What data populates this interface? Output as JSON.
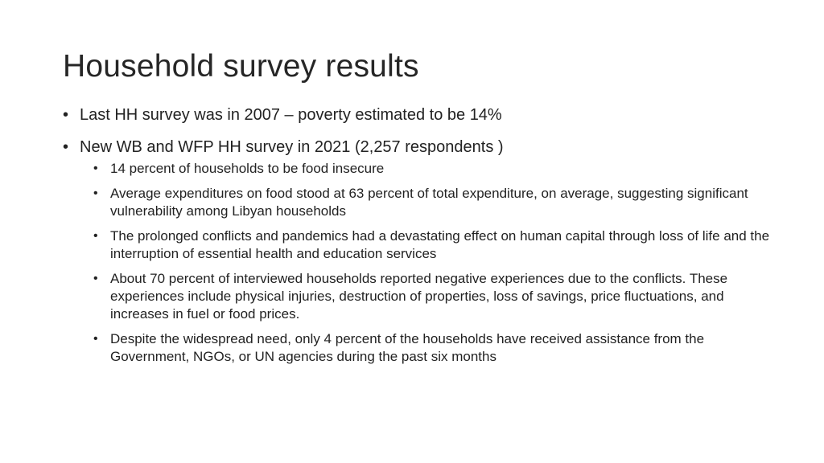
{
  "slide": {
    "title": "Household survey results",
    "bullets": [
      {
        "text": "Last HH survey was in 2007 – poverty estimated to be 14%"
      },
      {
        "text": "New WB and WFP HH survey in 2021 (2,257 respondents )",
        "sub": [
          "14 percent of households to be food insecure",
          "Average expenditures on food stood at 63 percent of total expenditure, on average, suggesting significant vulnerability among Libyan households",
          "The prolonged conflicts and pandemics had a devastating effect on human capital through loss of life and the interruption of essential health and education services",
          "About 70 percent of interviewed households reported negative experiences due to the conflicts. These experiences include physical injuries, destruction of properties, loss of savings, price fluctuations, and increases in fuel or food prices.",
          "Despite the widespread need, only 4 percent of the households have received assistance from the Government, NGOs, or UN agencies during the past six months"
        ]
      }
    ]
  }
}
